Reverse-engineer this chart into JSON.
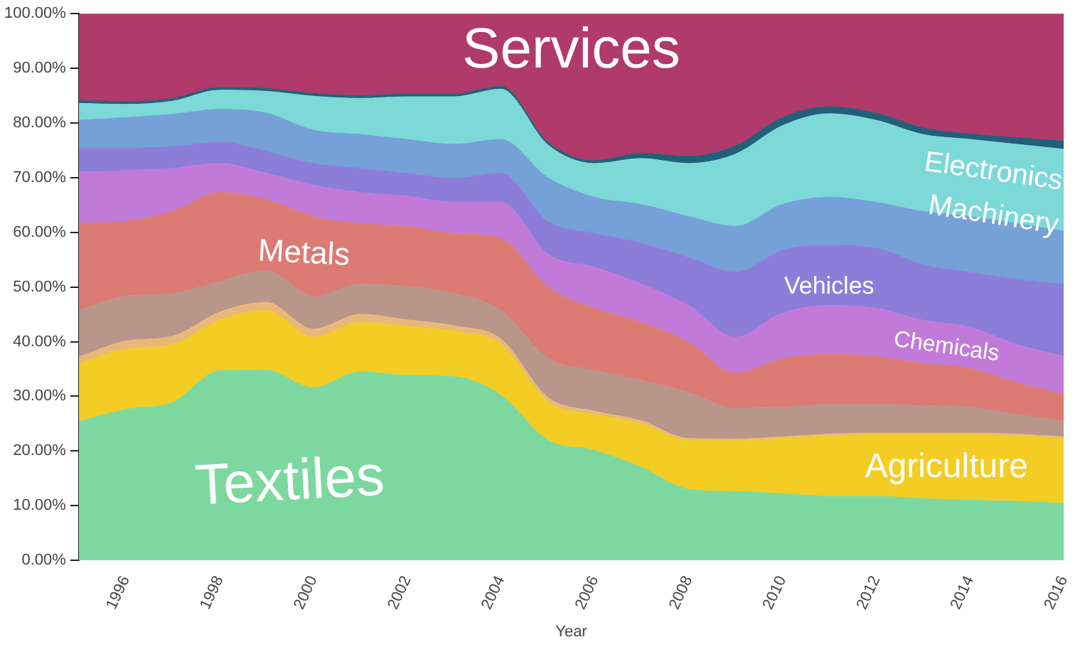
{
  "chart_data": {
    "type": "area",
    "stacked": true,
    "xlabel": "Year",
    "legend": false,
    "grid": false,
    "x": [
      1995,
      1996,
      1997,
      1998,
      1999,
      2000,
      2001,
      2002,
      2003,
      2004,
      2005,
      2006,
      2007,
      2008,
      2009,
      2010,
      2011,
      2012,
      2013,
      2014,
      2015,
      2016
    ],
    "xlim": [
      1995,
      2016
    ],
    "xticks": [
      1996,
      1998,
      2000,
      2002,
      2004,
      2006,
      2008,
      2010,
      2012,
      2014,
      2016
    ],
    "ylim": [
      0,
      100
    ],
    "yticks": [
      {
        "value": 0,
        "label": "0.00%"
      },
      {
        "value": 10,
        "label": "10.00%"
      },
      {
        "value": 20,
        "label": "20.00%"
      },
      {
        "value": 30,
        "label": "30.00%"
      },
      {
        "value": 40,
        "label": "40.00%"
      },
      {
        "value": 50,
        "label": "50.00%"
      },
      {
        "value": 60,
        "label": "60.00%"
      },
      {
        "value": 70,
        "label": "70.00%"
      },
      {
        "value": 80,
        "label": "80.00%"
      },
      {
        "value": 90,
        "label": "90.00%"
      },
      {
        "value": 100,
        "label": "100.00%"
      }
    ],
    "series": [
      {
        "name": "Textiles",
        "color": "#7dd8a0",
        "values": [
          25.4,
          27.6,
          28.9,
          34.7,
          34.8,
          31.6,
          34.5,
          33.8,
          33.6,
          30.2,
          22,
          20.1,
          17.0,
          13.0,
          12.6,
          12.2,
          11.7,
          11.7,
          11.3,
          11.0,
          10.8,
          10.4
        ]
      },
      {
        "name": "Agriculture",
        "color": "#f3cd23",
        "values": [
          10.6,
          11.0,
          10.6,
          9.2,
          10.9,
          9.2,
          9.0,
          9.0,
          8.3,
          9.3,
          7.0,
          6.6,
          8.0,
          8.9,
          9.3,
          10.1,
          11.1,
          11.3,
          11.7,
          12.0,
          12.0,
          11.9
        ]
      },
      {
        "color": "#e8b87a",
        "values": [
          1.2,
          1.5,
          1.5,
          1.5,
          1.5,
          1.5,
          1.5,
          1.2,
          1.0,
          1.0,
          0.8,
          0.6,
          0.5,
          0.4,
          0.3,
          0.3,
          0.3,
          0.3,
          0.3,
          0.3,
          0.3,
          0.3
        ]
      },
      {
        "color": "#b8968a",
        "values": [
          8.5,
          8.2,
          7.8,
          5.6,
          5.8,
          6.0,
          5.5,
          6.1,
          5.9,
          5.2,
          7.2,
          7.4,
          7.4,
          8.4,
          5.6,
          5.4,
          5.4,
          5.2,
          5.0,
          4.7,
          3.6,
          2.8
        ]
      },
      {
        "name": "Metals",
        "color": "#dc7b74",
        "values": [
          15.9,
          13.7,
          15.0,
          16.3,
          13.0,
          14.6,
          11.1,
          11.0,
          11.0,
          13.2,
          13,
          11.4,
          10.6,
          9.2,
          6.4,
          8.9,
          9.2,
          8.8,
          7.7,
          7.1,
          5.8,
          5.0
        ]
      },
      {
        "name": "Chemicals",
        "color": "#c27ad8",
        "values": [
          9.4,
          9.3,
          7.9,
          5.3,
          4.8,
          5.7,
          5.7,
          5.5,
          5.7,
          6.6,
          6,
          7.5,
          7.0,
          6.7,
          6.6,
          8.3,
          8.9,
          8.8,
          7.9,
          7.5,
          7.0,
          6.9
        ]
      },
      {
        "name": "Vehicles",
        "color": "#8c7ed8",
        "values": [
          4.4,
          4.1,
          4.0,
          3.9,
          4.0,
          4.0,
          4.4,
          4.2,
          4.4,
          5.3,
          6,
          6.2,
          7.5,
          8.8,
          11.9,
          11.5,
          11.0,
          11.0,
          10.2,
          10.1,
          11.9,
          13.2
        ]
      },
      {
        "name": "Machinery",
        "color": "#76a0d8",
        "values": [
          5.1,
          5.6,
          5.9,
          6.0,
          7.0,
          6.1,
          6.2,
          6.2,
          6.2,
          6.2,
          8,
          6.6,
          7.1,
          7.5,
          8.4,
          8.4,
          8.8,
          8.4,
          9.7,
          10.2,
          10.2,
          9.7
        ]
      },
      {
        "name": "Electronics",
        "color": "#7dd8d8",
        "values": [
          3.1,
          2.4,
          2.4,
          3.5,
          4.0,
          6.2,
          6.6,
          7.8,
          8.7,
          9.2,
          6,
          6.2,
          8.4,
          9.7,
          13.2,
          14.4,
          15.3,
          15.0,
          14.1,
          14.1,
          14.5,
          15.0
        ]
      },
      {
        "color": "#22607a",
        "values": [
          0.5,
          0.5,
          0.5,
          0.5,
          0.5,
          0.5,
          0.5,
          0.5,
          0.5,
          0.5,
          0.5,
          0.5,
          1.0,
          1.3,
          1.5,
          1.5,
          1.3,
          1.3,
          1.2,
          1.0,
          1.2,
          1.5
        ]
      },
      {
        "name": "Services",
        "color": "#b03a6a",
        "values": [
          15.9,
          16.1,
          15.5,
          13.5,
          13.7,
          14.6,
          15.0,
          14.7,
          14.7,
          13.3,
          23.5,
          26.9,
          25.5,
          26.1,
          24.2,
          19.0,
          17.0,
          18.2,
          20.9,
          22.0,
          22.7,
          23.3
        ]
      }
    ]
  }
}
